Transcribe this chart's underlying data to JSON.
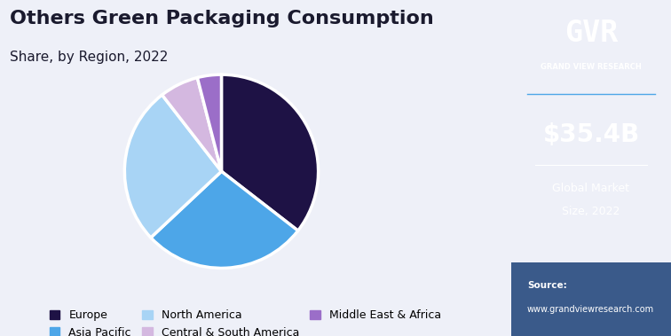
{
  "title_line1": "Others Green Packaging Consumption",
  "title_line2": "Share, by Region, 2022",
  "slices": [
    {
      "label": "Europe",
      "value": 35.5,
      "color": "#1e1245"
    },
    {
      "label": "Asia Pacific",
      "value": 27.5,
      "color": "#4da6e8"
    },
    {
      "label": "North America",
      "value": 26.5,
      "color": "#a8d4f5"
    },
    {
      "label": "Central & South America",
      "value": 6.5,
      "color": "#d4b8e0"
    },
    {
      "label": "Middle East & Africa",
      "value": 4.0,
      "color": "#9b6ec8"
    }
  ],
  "start_angle": 90,
  "sidebar_bg": "#2e2460",
  "sidebar_logo_text": "GVR",
  "sidebar_company": "GRAND VIEW RESEARCH",
  "sidebar_value": "$35.4B",
  "sidebar_label1": "Global Market",
  "sidebar_label2": "Size, 2022",
  "sidebar_source1": "Source:",
  "sidebar_source2": "www.grandviewresearch.com",
  "main_bg": "#eef0f8",
  "title_color": "#1a1a2e",
  "legend_fontsize": 9,
  "title_fontsize1": 16,
  "title_fontsize2": 11
}
